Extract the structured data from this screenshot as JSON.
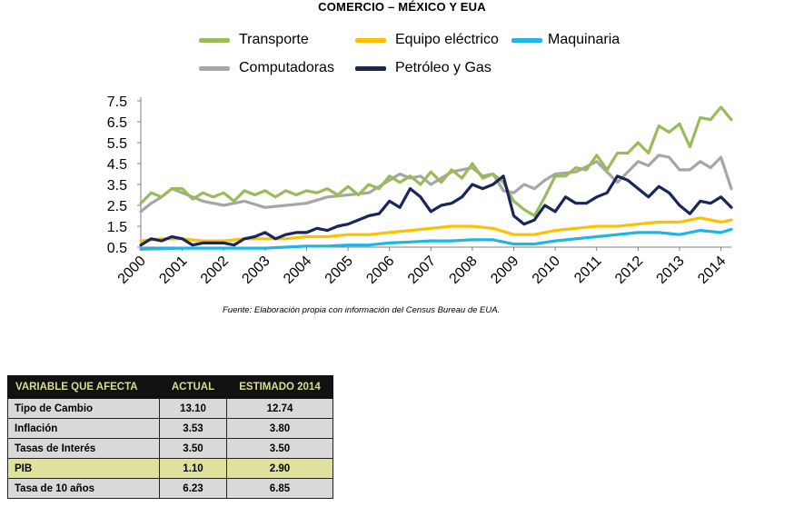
{
  "page_title": "COMERCIO – MÉXICO Y EUA",
  "source_note": "Fuente: Elaboración propia con información del Census Bureau de EUA.",
  "chart_data": {
    "type": "line",
    "title": "COMERCIO – MÉXICO Y EUA",
    "xlim": [
      2000,
      2014.25
    ],
    "ylim": [
      0.5,
      7.5
    ],
    "yticks": [
      "7.5",
      "6.5",
      "5.5",
      "4.5",
      "3.5",
      "2.5",
      "1.5",
      "0.5"
    ],
    "ytick_values": [
      7.5,
      6.5,
      5.5,
      4.5,
      3.5,
      2.5,
      1.5,
      0.5
    ],
    "xticks": [
      "2000",
      "2001",
      "2002",
      "2003",
      "2004",
      "2005",
      "2006",
      "2007",
      "2008",
      "2009",
      "2010",
      "2011",
      "2012",
      "2013",
      "2014"
    ],
    "xtick_values": [
      2000,
      2001,
      2002,
      2003,
      2004,
      2005,
      2006,
      2007,
      2008,
      2009,
      2010,
      2011,
      2012,
      2013,
      2014
    ],
    "grid": false,
    "legend_position": "top",
    "series": [
      {
        "name": "Transporte",
        "color": "#9bbb59",
        "x": [
          2000,
          2000.25,
          2000.5,
          2000.75,
          2001,
          2001.25,
          2001.5,
          2001.75,
          2002,
          2002.25,
          2002.5,
          2002.75,
          2003,
          2003.25,
          2003.5,
          2003.75,
          2004,
          2004.25,
          2004.5,
          2004.75,
          2005,
          2005.25,
          2005.5,
          2005.75,
          2006,
          2006.25,
          2006.5,
          2006.75,
          2007,
          2007.25,
          2007.5,
          2007.75,
          2008,
          2008.25,
          2008.5,
          2008.75,
          2009,
          2009.25,
          2009.5,
          2009.75,
          2010,
          2010.25,
          2010.5,
          2010.75,
          2011,
          2011.25,
          2011.5,
          2011.75,
          2012,
          2012.25,
          2012.5,
          2012.75,
          2013,
          2013.25,
          2013.5,
          2013.75,
          2014,
          2014.25
        ],
        "y": [
          2.6,
          3.1,
          2.9,
          3.3,
          3.3,
          2.8,
          3.1,
          2.9,
          3.1,
          2.7,
          3.2,
          3.0,
          3.2,
          2.9,
          3.2,
          3.0,
          3.2,
          3.1,
          3.3,
          3.0,
          3.4,
          3.0,
          3.5,
          3.3,
          3.9,
          3.6,
          3.9,
          3.5,
          4.1,
          3.6,
          4.2,
          3.8,
          4.5,
          3.8,
          4.0,
          3.6,
          2.7,
          2.3,
          2.0,
          2.9,
          3.9,
          3.9,
          4.3,
          4.2,
          4.9,
          4.2,
          5.0,
          5.0,
          5.5,
          5.0,
          6.3,
          6.0,
          6.4,
          5.3,
          6.7,
          6.6,
          7.2,
          6.6
        ]
      },
      {
        "name": "Equipo eléctrico",
        "color": "#ffc000",
        "x": [
          2000,
          2000.5,
          2001,
          2001.5,
          2002,
          2002.5,
          2003,
          2003.5,
          2004,
          2004.5,
          2005,
          2005.5,
          2006,
          2006.5,
          2007,
          2007.5,
          2008,
          2008.5,
          2009,
          2009.5,
          2010,
          2010.5,
          2011,
          2011.5,
          2012,
          2012.5,
          2013,
          2013.5,
          2014,
          2014.25
        ],
        "y": [
          0.8,
          0.9,
          0.9,
          0.8,
          0.8,
          0.9,
          0.9,
          0.9,
          1.0,
          1.0,
          1.1,
          1.1,
          1.2,
          1.3,
          1.4,
          1.5,
          1.5,
          1.4,
          1.1,
          1.1,
          1.3,
          1.4,
          1.5,
          1.5,
          1.6,
          1.7,
          1.7,
          1.9,
          1.7,
          1.8
        ]
      },
      {
        "name": "Maquinaria",
        "color": "#1fb5e6",
        "x": [
          2000,
          2001,
          2002,
          2003,
          2004,
          2004.5,
          2005,
          2005.5,
          2006,
          2006.5,
          2007,
          2007.5,
          2008,
          2008.5,
          2009,
          2009.5,
          2010,
          2010.5,
          2011,
          2011.5,
          2012,
          2012.5,
          2013,
          2013.5,
          2014,
          2014.25
        ],
        "y": [
          0.4,
          0.45,
          0.45,
          0.45,
          0.55,
          0.55,
          0.6,
          0.6,
          0.7,
          0.75,
          0.8,
          0.8,
          0.85,
          0.85,
          0.65,
          0.65,
          0.8,
          0.9,
          1.0,
          1.1,
          1.2,
          1.2,
          1.1,
          1.3,
          1.2,
          1.35
        ]
      },
      {
        "name": "Computadoras",
        "color": "#a6a6a6",
        "x": [
          2000,
          2000.25,
          2000.5,
          2000.75,
          2001,
          2001.5,
          2002,
          2002.5,
          2003,
          2003.5,
          2004,
          2004.5,
          2005,
          2005.5,
          2006,
          2006.25,
          2006.5,
          2006.75,
          2007,
          2007.5,
          2008,
          2008.25,
          2008.5,
          2008.75,
          2009,
          2009.25,
          2009.5,
          2009.75,
          2010,
          2010.5,
          2011,
          2011.5,
          2012,
          2012.25,
          2012.5,
          2012.75,
          2013,
          2013.25,
          2013.5,
          2013.75,
          2014,
          2014.25
        ],
        "y": [
          2.2,
          2.6,
          2.9,
          3.3,
          3.1,
          2.7,
          2.5,
          2.7,
          2.4,
          2.5,
          2.6,
          2.9,
          3.0,
          3.1,
          3.7,
          4.0,
          3.8,
          3.9,
          3.5,
          4.1,
          4.3,
          3.9,
          4.0,
          3.2,
          3.1,
          3.5,
          3.3,
          3.7,
          4.0,
          4.1,
          4.6,
          3.6,
          4.6,
          4.4,
          4.9,
          4.8,
          4.2,
          4.2,
          4.6,
          4.3,
          4.8,
          3.3
        ]
      },
      {
        "name": "Petróleo y Gas",
        "color": "#17275c",
        "x": [
          2000,
          2000.25,
          2000.5,
          2000.75,
          2001,
          2001.25,
          2001.5,
          2001.75,
          2002,
          2002.25,
          2002.5,
          2002.75,
          2003,
          2003.25,
          2003.5,
          2003.75,
          2004,
          2004.25,
          2004.5,
          2004.75,
          2005,
          2005.25,
          2005.5,
          2005.75,
          2006,
          2006.25,
          2006.5,
          2006.75,
          2007,
          2007.25,
          2007.5,
          2007.75,
          2008,
          2008.25,
          2008.5,
          2008.75,
          2009,
          2009.25,
          2009.5,
          2009.75,
          2010,
          2010.25,
          2010.5,
          2010.75,
          2011,
          2011.25,
          2011.5,
          2011.75,
          2012,
          2012.25,
          2012.5,
          2012.75,
          2013,
          2013.25,
          2013.5,
          2013.75,
          2014,
          2014.25
        ],
        "y": [
          0.6,
          0.9,
          0.8,
          1.0,
          0.9,
          0.6,
          0.7,
          0.7,
          0.7,
          0.6,
          0.9,
          1.0,
          1.2,
          0.9,
          1.1,
          1.2,
          1.2,
          1.4,
          1.3,
          1.5,
          1.6,
          1.8,
          2.0,
          2.1,
          2.7,
          2.4,
          3.3,
          2.9,
          2.2,
          2.5,
          2.6,
          2.9,
          3.5,
          3.3,
          3.5,
          3.9,
          2.0,
          1.6,
          1.8,
          2.5,
          2.2,
          2.9,
          2.6,
          2.6,
          2.9,
          3.1,
          3.9,
          3.7,
          3.3,
          2.9,
          3.4,
          3.1,
          2.5,
          2.1,
          2.7,
          2.6,
          2.9,
          2.4
        ]
      }
    ]
  },
  "legend_rows": [
    [
      "Transporte",
      "Equipo eléctrico",
      "Maquinaria"
    ],
    [
      "Computadoras",
      "Petróleo y Gas"
    ]
  ],
  "table": {
    "headers": [
      "VARIABLE QUE AFECTA",
      "ACTUAL",
      "ESTIMADO 2014"
    ],
    "rows": [
      {
        "variable": "Tipo de Cambio",
        "actual": "13.10",
        "estimado": "12.74",
        "highlight": false
      },
      {
        "variable": "Inflación",
        "actual": "3.53",
        "estimado": "3.80",
        "highlight": false
      },
      {
        "variable": "Tasas de Interés",
        "actual": "3.50",
        "estimado": "3.50",
        "highlight": false
      },
      {
        "variable": "PIB",
        "actual": "1.10",
        "estimado": "2.90",
        "highlight": true
      },
      {
        "variable": "Tasa de 10 años",
        "actual": "6.23",
        "estimado": "6.85",
        "highlight": false
      }
    ],
    "colors": {
      "header_bg": "#111111",
      "header_text": "#d9dd8c",
      "row_bg": "#d9d9d9",
      "highlight_bg": "#dfe29b"
    }
  }
}
